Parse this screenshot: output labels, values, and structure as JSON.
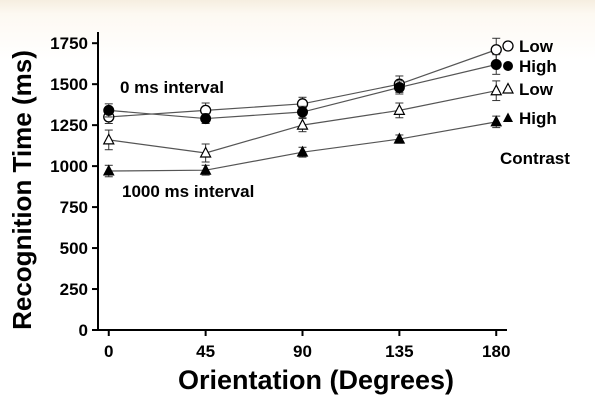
{
  "chart_data": {
    "type": "line",
    "xlabel": "Orientation (Degrees)",
    "ylabel": "Recognition Time (ms)",
    "x": [
      0,
      45,
      90,
      135,
      180
    ],
    "xticks": [
      "0",
      "45",
      "90",
      "135",
      "180"
    ],
    "yticks": [
      "0",
      "250",
      "500",
      "750",
      "1000",
      "1250",
      "1500",
      "1750"
    ],
    "xlim": [
      -5,
      185
    ],
    "ylim": [
      0,
      1800
    ],
    "grid": false,
    "series": [
      {
        "name": "Low",
        "group": "0 ms interval",
        "marker": "open-circle",
        "values": [
          1300,
          1340,
          1380,
          1500,
          1710
        ],
        "errors": [
          40,
          45,
          40,
          50,
          70
        ]
      },
      {
        "name": "High",
        "group": "0 ms interval",
        "marker": "filled-circle",
        "values": [
          1340,
          1290,
          1330,
          1480,
          1620
        ],
        "errors": [
          40,
          30,
          35,
          40,
          60
        ]
      },
      {
        "name": "Low",
        "group": "1000 ms interval",
        "marker": "open-triangle",
        "values": [
          1160,
          1080,
          1250,
          1340,
          1460
        ],
        "errors": [
          60,
          55,
          40,
          45,
          60
        ]
      },
      {
        "name": "High",
        "group": "1000 ms interval",
        "marker": "filled-triangle",
        "values": [
          970,
          975,
          1085,
          1165,
          1270
        ],
        "errors": [
          35,
          30,
          30,
          25,
          35
        ]
      }
    ],
    "annotations": [
      "0 ms interval",
      "1000 ms interval",
      "Contrast"
    ]
  }
}
